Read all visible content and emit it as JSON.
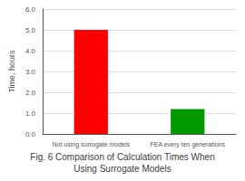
{
  "chart_data": {
    "type": "bar",
    "title": "Fig. 6 Comparison of Calculation Times When\nUsing Surrogate Models",
    "ylabel": "Time, hours",
    "categories": [
      "Not using surrogate models",
      "FEA every ten generations"
    ],
    "values": [
      5.0,
      1.2
    ],
    "colors": [
      "#ff0000",
      "#009900"
    ],
    "ylim": [
      0,
      6.0
    ],
    "yticks": [
      {
        "value": 0.0,
        "label": "0.0"
      },
      {
        "value": 1.0,
        "label": "1.0"
      },
      {
        "value": 2.0,
        "label": "2.0"
      },
      {
        "value": 3.0,
        "label": "3.0"
      },
      {
        "value": 4.0,
        "label": "4.0"
      },
      {
        "value": 5.0,
        "label": "5.0"
      },
      {
        "value": 6.0,
        "label": "6.0"
      }
    ],
    "grid": true
  }
}
